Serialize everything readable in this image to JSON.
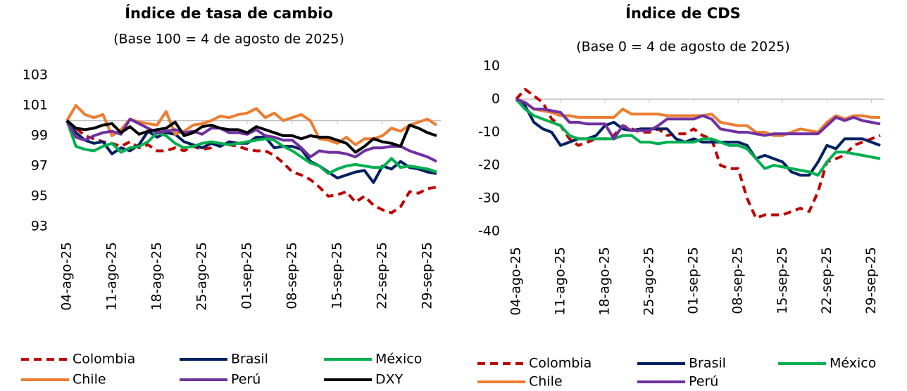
{
  "chart_data": [
    {
      "type": "line",
      "title": "Índice de tasa de cambio",
      "subtitle": "(Base 100 = 4 de agosto de 2025)",
      "categories": [
        "04-ago-25",
        null,
        null,
        null,
        null,
        "11-ago-25",
        null,
        null,
        null,
        null,
        "18-ago-25",
        null,
        null,
        null,
        null,
        "25-ago-25",
        null,
        null,
        null,
        null,
        "01-sep-25",
        null,
        null,
        null,
        null,
        "08-sep-25",
        null,
        null,
        null,
        null,
        "15-sep-25",
        null,
        null,
        null,
        null,
        "22-sep-25",
        null,
        null,
        null,
        null,
        "29-sep-25",
        null
      ],
      "ylim": [
        93,
        103
      ],
      "yticks": [
        93,
        95,
        97,
        99,
        101,
        103
      ],
      "x_axis_crossing": 100,
      "legend": "bottom",
      "series": [
        {
          "name": "Colombia",
          "color": "#c00000",
          "dashed": true,
          "values": [
            100,
            99.5,
            99,
            98.8,
            98.6,
            98.5,
            98.3,
            98.6,
            98.2,
            98.4,
            98.0,
            98.0,
            98.2,
            98.0,
            98.3,
            98.1,
            98.2,
            98.5,
            98.4,
            98.3,
            98.1,
            98.0,
            98.0,
            97.7,
            97.2,
            96.6,
            96.4,
            96.1,
            95.6,
            95.0,
            95.1,
            95.3,
            94.6,
            95.0,
            94.4,
            94.1,
            93.9,
            94.3,
            95.3,
            95.2,
            95.5,
            95.6
          ]
        },
        {
          "name": "Brasil",
          "color": "#002060",
          "values": [
            100,
            99.2,
            98.7,
            98.5,
            98.6,
            97.8,
            98.2,
            98.0,
            98.4,
            99.3,
            98.9,
            99.2,
            99.1,
            98.6,
            98.4,
            98.2,
            98.5,
            98.3,
            98.6,
            98.5,
            98.5,
            98.9,
            98.9,
            98.2,
            98.3,
            98.3,
            98.1,
            97.3,
            97.0,
            96.6,
            96.2,
            96.4,
            96.6,
            96.7,
            95.9,
            97.0,
            96.8,
            97.3,
            96.9,
            96.8,
            96.6,
            96.5
          ]
        },
        {
          "name": "México",
          "color": "#00b050",
          "values": [
            100,
            98.3,
            98.1,
            98.0,
            98.3,
            98.5,
            97.9,
            98.2,
            98.3,
            98.6,
            99.2,
            99.0,
            98.5,
            98.2,
            98.3,
            98.5,
            98.6,
            98.5,
            98.4,
            98.5,
            98.6,
            98.7,
            98.8,
            98.7,
            98.3,
            98.0,
            97.6,
            97.2,
            97.0,
            96.5,
            96.8,
            97.0,
            97.1,
            97.0,
            96.9,
            96.9,
            97.5,
            96.9,
            97.0,
            96.9,
            96.8,
            96.6
          ]
        },
        {
          "name": "Chile",
          "color": "#ed7d31",
          "values": [
            100,
            101.0,
            100.4,
            100.2,
            100.4,
            99.0,
            99.4,
            100.1,
            99.9,
            99.8,
            99.7,
            100.6,
            99.1,
            99.3,
            99.7,
            99.8,
            100.0,
            100.3,
            100.2,
            100.4,
            100.5,
            100.8,
            100.2,
            100.5,
            100.0,
            100.2,
            100.4,
            100.0,
            98.8,
            98.7,
            98.5,
            98.9,
            98.4,
            98.8,
            98.8,
            99.0,
            99.5,
            99.3,
            99.7,
            99.9,
            100.1,
            99.7
          ]
        },
        {
          "name": "Perú",
          "color": "#7030a0",
          "values": [
            100,
            98.9,
            98.7,
            99.0,
            99.2,
            99.3,
            99.1,
            100.1,
            99.8,
            99.5,
            99.2,
            99.3,
            99.4,
            99.2,
            99.3,
            99.1,
            99.5,
            99.5,
            99.2,
            99.2,
            99.1,
            99.4,
            99.0,
            98.9,
            98.7,
            98.7,
            98.2,
            97.6,
            98.0,
            97.9,
            97.9,
            97.8,
            97.6,
            98.0,
            98.2,
            98.2,
            98.3,
            98.3,
            98.0,
            97.8,
            97.6,
            97.3
          ]
        },
        {
          "name": "DXY",
          "color": "#000000",
          "values": [
            100,
            99.5,
            99.4,
            99.5,
            99.7,
            99.8,
            99.2,
            99.6,
            99.1,
            99.3,
            99.4,
            99.5,
            99.9,
            99.0,
            99.2,
            99.6,
            99.7,
            99.5,
            99.4,
            99.4,
            99.2,
            99.6,
            99.4,
            99.2,
            99.0,
            99.0,
            98.8,
            99.0,
            98.9,
            98.9,
            98.7,
            98.5,
            97.9,
            98.3,
            98.8,
            98.6,
            98.5,
            98.3,
            99.7,
            99.5,
            99.2,
            99.0
          ]
        }
      ]
    },
    {
      "type": "line",
      "title": "Índice de CDS",
      "subtitle": "(Base 0 = 4 de agosto de 2025)",
      "categories": [
        "04-ago-25",
        null,
        null,
        null,
        null,
        "11-ago-25",
        null,
        null,
        null,
        null,
        "18-ago-25",
        null,
        null,
        null,
        null,
        "25-ago-25",
        null,
        null,
        null,
        null,
        "01-sep-25",
        null,
        null,
        null,
        null,
        "08-sep-25",
        null,
        null,
        null,
        null,
        "15-sep-25",
        null,
        null,
        null,
        null,
        "22-sep-25",
        null,
        null,
        null,
        null,
        "29-sep-25",
        null
      ],
      "ylim": [
        -40,
        10
      ],
      "yticks": [
        -40,
        -30,
        -20,
        -10,
        0,
        10
      ],
      "x_axis_crossing": 0,
      "legend": "bottom",
      "series": [
        {
          "name": "Colombia",
          "color": "#c00000",
          "dashed": true,
          "values": [
            0,
            3,
            1,
            -1,
            -6,
            -8,
            -12,
            -14,
            -13,
            -12,
            -12,
            -11,
            -8,
            -9,
            -10,
            -10,
            -9,
            -11,
            -10.5,
            -10.5,
            -9,
            -11,
            -12,
            -20,
            -21,
            -21,
            -30,
            -36,
            -35,
            -35,
            -35,
            -34,
            -33,
            -34,
            -28,
            -19,
            -18,
            -17,
            -14,
            -13,
            -12,
            -11
          ]
        },
        {
          "name": "Brasil",
          "color": "#002060",
          "values": [
            0,
            -2,
            -7,
            -9,
            -10,
            -14,
            -13,
            -12,
            -12,
            -11,
            -8,
            -7,
            -9,
            -9.5,
            -9,
            -9,
            -9,
            -9,
            -12,
            -13,
            -12,
            -13,
            -13,
            -13,
            -13,
            -13,
            -14,
            -18,
            -17,
            -18,
            -19,
            -22,
            -23,
            -23,
            -19,
            -14,
            -15,
            -12,
            -12,
            -12,
            -13,
            -14
          ]
        },
        {
          "name": "México",
          "color": "#00b050",
          "values": [
            0,
            -3,
            -5,
            -6,
            -7,
            -8,
            -11,
            -12,
            -12,
            -12,
            -12,
            -12,
            -11,
            -11,
            -13,
            -13,
            -13.5,
            -13,
            -13,
            -13,
            -13,
            -12,
            -12,
            -13,
            -14,
            -14,
            -15,
            -18,
            -21,
            -20,
            -20.5,
            -21,
            -21.5,
            -22,
            -23,
            -19,
            -16,
            -16,
            -16.5,
            -17,
            -17.5,
            -18
          ]
        },
        {
          "name": "Chile",
          "color": "#ed7d31",
          "values": [
            0,
            -1,
            -3,
            -3.5,
            -4,
            -5,
            -5,
            -5.5,
            -5.5,
            -5.5,
            -5.5,
            -5.5,
            -3,
            -4.5,
            -4.5,
            -4.5,
            -4.5,
            -5,
            -5,
            -5,
            -5,
            -5,
            -4.5,
            -7,
            -7.5,
            -8,
            -8,
            -10,
            -10,
            -11,
            -11,
            -10,
            -9,
            -9.5,
            -10,
            -7,
            -5,
            -6,
            -5,
            -5,
            -5.5,
            -5.5
          ]
        },
        {
          "name": "Perú",
          "color": "#7030a0",
          "values": [
            0,
            -1,
            -3,
            -3,
            -3.5,
            -4,
            -7,
            -7,
            -7.5,
            -7.5,
            -7.5,
            -12,
            -8,
            -9.5,
            -9.5,
            -9.5,
            -8,
            -6,
            -6,
            -6,
            -6,
            -5,
            -6,
            -9,
            -9.5,
            -10,
            -10,
            -10.5,
            -11,
            -10.5,
            -10.5,
            -10.5,
            -10.5,
            -10.5,
            -10.5,
            -8,
            -5.5,
            -6.5,
            -5.5,
            -6.5,
            -7,
            -7.5
          ]
        }
      ]
    }
  ]
}
